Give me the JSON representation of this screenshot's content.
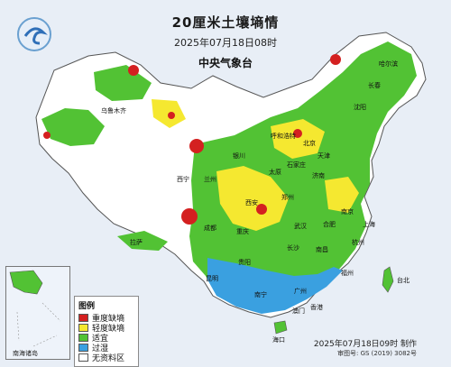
{
  "map": {
    "title": "20厘米土壤墒情",
    "subtitle": "2025年07月18日08时",
    "agency": "中央气象台",
    "inset_label": "南海诸岛",
    "footer_credit": "2025年07月18日09时 制作",
    "footer_approval": "审图号: GS (2019) 3082号"
  },
  "legend": {
    "title": "图例",
    "items": [
      {
        "label": "重度缺墒",
        "color": "#d42020"
      },
      {
        "label": "轻度缺墒",
        "color": "#f5e830"
      },
      {
        "label": "适宜",
        "color": "#52c234"
      },
      {
        "label": "过湿",
        "color": "#3aa0e0"
      },
      {
        "label": "无资料区",
        "color": "#ffffff"
      }
    ]
  },
  "cities": [
    "哈尔滨",
    "长春",
    "沈阳",
    "北京",
    "天津",
    "石家庄",
    "济南",
    "太原",
    "郑州",
    "西安",
    "银川",
    "兰州",
    "西宁",
    "南京",
    "上海",
    "合肥",
    "武汉",
    "杭州",
    "长沙",
    "南昌",
    "福州",
    "台北",
    "重庆",
    "成都",
    "贵阳",
    "昆明",
    "南宁",
    "广州",
    "香港",
    "澳门",
    "海口",
    "拉萨",
    "乌鲁木齐",
    "呼和浩特"
  ],
  "colors": {
    "sea": "#e8eef6",
    "land_base": "#52c234",
    "nodata": "#ffffff",
    "border": "#555555"
  }
}
